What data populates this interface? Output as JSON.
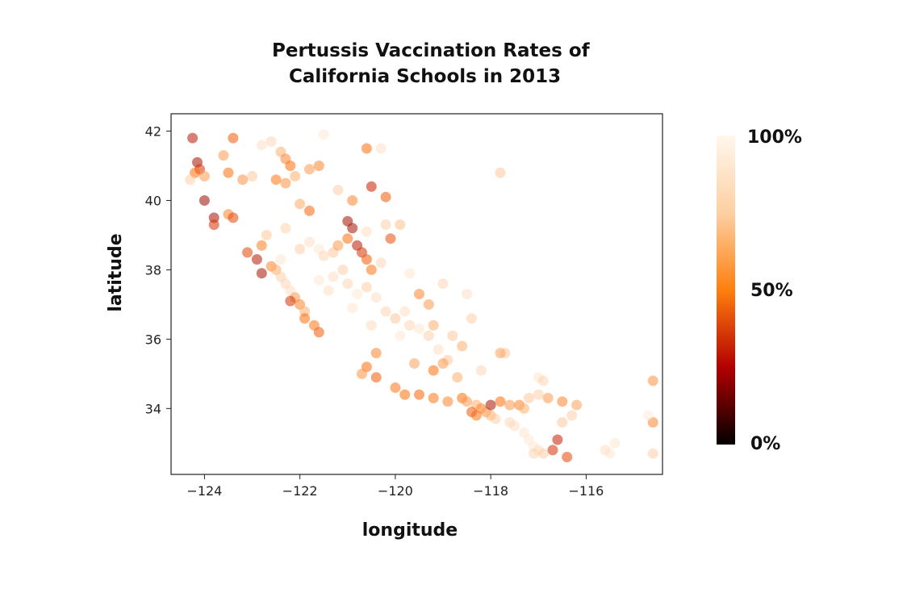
{
  "chart_data": {
    "type": "scatter",
    "title_line1": "Pertussis Vaccination Rates of",
    "title_line2": "California Schools in 2013",
    "xlabel": "longitude",
    "ylabel": "latitude",
    "xlim": [
      -124.7,
      -114.4
    ],
    "ylim": [
      32.1,
      42.5
    ],
    "xticks": [
      -124,
      -122,
      -120,
      -118,
      -116
    ],
    "xtick_labels": [
      "−124",
      "−122",
      "−120",
      "−118",
      "−116"
    ],
    "yticks": [
      34,
      36,
      38,
      40,
      42
    ],
    "ytick_labels": [
      "34",
      "36",
      "38",
      "40",
      "42"
    ],
    "colorbar": {
      "labels": [
        "100%",
        "50%",
        "0%"
      ],
      "values": [
        100,
        50,
        0
      ],
      "colors": [
        "#fff7ec",
        "#ff7f0e",
        "#c41b00",
        "#000000"
      ]
    },
    "points": [
      [
        -124.25,
        41.8,
        45
      ],
      [
        -124.15,
        41.1,
        40
      ],
      [
        -124.1,
        40.9,
        55
      ],
      [
        -124.2,
        40.8,
        70
      ],
      [
        -124.0,
        40.7,
        80
      ],
      [
        -124.3,
        40.6,
        90
      ],
      [
        -124.0,
        40.0,
        35
      ],
      [
        -123.8,
        39.5,
        40
      ],
      [
        -123.8,
        39.3,
        55
      ],
      [
        -123.5,
        39.6,
        75
      ],
      [
        -123.4,
        39.5,
        60
      ],
      [
        -123.6,
        41.3,
        80
      ],
      [
        -123.4,
        41.8,
        65
      ],
      [
        -123.5,
        40.8,
        70
      ],
      [
        -123.2,
        40.6,
        78
      ],
      [
        -123.0,
        40.7,
        88
      ],
      [
        -122.8,
        41.6,
        95
      ],
      [
        -122.6,
        41.7,
        92
      ],
      [
        -122.4,
        41.4,
        85
      ],
      [
        -122.3,
        41.2,
        75
      ],
      [
        -122.2,
        41.0,
        70
      ],
      [
        -122.5,
        40.6,
        72
      ],
      [
        -122.3,
        40.5,
        78
      ],
      [
        -122.1,
        40.7,
        85
      ],
      [
        -121.8,
        40.9,
        80
      ],
      [
        -121.6,
        41.0,
        75
      ],
      [
        -121.5,
        41.9,
        97
      ],
      [
        -121.2,
        40.3,
        90
      ],
      [
        -120.9,
        40.0,
        75
      ],
      [
        -120.6,
        41.5,
        70
      ],
      [
        -120.5,
        40.4,
        50
      ],
      [
        -120.2,
        40.1,
        65
      ],
      [
        -120.3,
        41.5,
        95
      ],
      [
        -117.8,
        40.8,
        88
      ],
      [
        -123.1,
        38.5,
        60
      ],
      [
        -122.9,
        38.3,
        45
      ],
      [
        -122.8,
        37.9,
        40
      ],
      [
        -122.6,
        38.1,
        75
      ],
      [
        -122.5,
        38.0,
        85
      ],
      [
        -122.4,
        37.8,
        90
      ],
      [
        -122.3,
        37.6,
        92
      ],
      [
        -122.2,
        37.4,
        95
      ],
      [
        -122.1,
        37.2,
        80
      ],
      [
        -122.0,
        37.0,
        75
      ],
      [
        -122.2,
        37.1,
        55
      ],
      [
        -121.9,
        36.8,
        85
      ],
      [
        -121.9,
        36.6,
        70
      ],
      [
        -121.7,
        36.4,
        72
      ],
      [
        -121.6,
        36.2,
        65
      ],
      [
        -122.0,
        38.6,
        90
      ],
      [
        -121.8,
        38.8,
        95
      ],
      [
        -121.6,
        38.6,
        97
      ],
      [
        -121.5,
        38.4,
        92
      ],
      [
        -121.3,
        38.5,
        88
      ],
      [
        -121.2,
        38.7,
        80
      ],
      [
        -121.0,
        38.9,
        70
      ],
      [
        -120.9,
        39.2,
        40
      ],
      [
        -121.0,
        39.4,
        38
      ],
      [
        -120.8,
        38.7,
        45
      ],
      [
        -120.7,
        38.5,
        55
      ],
      [
        -120.6,
        38.3,
        65
      ],
      [
        -120.5,
        38.0,
        72
      ],
      [
        -121.1,
        38.0,
        90
      ],
      [
        -121.3,
        37.8,
        95
      ],
      [
        -121.0,
        37.6,
        92
      ],
      [
        -120.8,
        37.3,
        97
      ],
      [
        -120.6,
        37.5,
        90
      ],
      [
        -120.4,
        37.2,
        95
      ],
      [
        -120.2,
        36.8,
        92
      ],
      [
        -120.0,
        36.6,
        88
      ],
      [
        -119.8,
        36.8,
        95
      ],
      [
        -119.7,
        36.4,
        92
      ],
      [
        -119.5,
        36.3,
        96
      ],
      [
        -119.3,
        36.1,
        90
      ],
      [
        -119.2,
        36.4,
        85
      ],
      [
        -119.5,
        37.3,
        75
      ],
      [
        -119.3,
        37.0,
        80
      ],
      [
        -119.0,
        37.6,
        92
      ],
      [
        -118.5,
        37.3,
        95
      ],
      [
        -118.4,
        36.6,
        90
      ],
      [
        -118.6,
        35.8,
        85
      ],
      [
        -118.9,
        35.4,
        88
      ],
      [
        -119.0,
        35.3,
        80
      ],
      [
        -119.2,
        35.1,
        70
      ],
      [
        -119.6,
        35.3,
        82
      ],
      [
        -120.4,
        35.6,
        75
      ],
      [
        -120.6,
        35.2,
        70
      ],
      [
        -120.7,
        35.0,
        78
      ],
      [
        -120.4,
        34.9,
        65
      ],
      [
        -120.0,
        34.6,
        72
      ],
      [
        -119.8,
        34.4,
        70
      ],
      [
        -119.5,
        34.4,
        68
      ],
      [
        -119.2,
        34.3,
        72
      ],
      [
        -118.9,
        34.2,
        75
      ],
      [
        -118.6,
        34.3,
        70
      ],
      [
        -118.5,
        34.2,
        80
      ],
      [
        -118.3,
        34.1,
        85
      ],
      [
        -118.2,
        34.0,
        75
      ],
      [
        -118.1,
        33.9,
        80
      ],
      [
        -118.0,
        33.8,
        85
      ],
      [
        -117.9,
        33.7,
        90
      ],
      [
        -118.3,
        33.8,
        72
      ],
      [
        -118.4,
        33.9,
        65
      ],
      [
        -118.0,
        34.1,
        40
      ],
      [
        -117.8,
        34.2,
        70
      ],
      [
        -117.6,
        34.1,
        80
      ],
      [
        -117.4,
        34.1,
        75
      ],
      [
        -117.3,
        34.0,
        85
      ],
      [
        -117.2,
        34.3,
        88
      ],
      [
        -117.0,
        34.4,
        90
      ],
      [
        -116.8,
        34.3,
        80
      ],
      [
        -116.5,
        34.2,
        75
      ],
      [
        -116.2,
        34.1,
        82
      ],
      [
        -117.6,
        33.6,
        92
      ],
      [
        -117.5,
        33.5,
        95
      ],
      [
        -117.3,
        33.3,
        96
      ],
      [
        -117.2,
        33.1,
        97
      ],
      [
        -117.1,
        32.9,
        97
      ],
      [
        -117.0,
        32.8,
        95
      ],
      [
        -117.1,
        32.7,
        92
      ],
      [
        -116.9,
        32.7,
        90
      ],
      [
        -116.7,
        32.8,
        55
      ],
      [
        -116.6,
        33.1,
        50
      ],
      [
        -116.4,
        32.6,
        60
      ],
      [
        -116.5,
        33.6,
        88
      ],
      [
        -116.3,
        33.8,
        90
      ],
      [
        -115.6,
        32.8,
        95
      ],
      [
        -115.5,
        32.7,
        97
      ],
      [
        -115.4,
        33.0,
        96
      ],
      [
        -114.6,
        34.8,
        78
      ],
      [
        -114.6,
        33.6,
        75
      ],
      [
        -114.6,
        32.7,
        90
      ],
      [
        -114.7,
        33.8,
        98
      ],
      [
        -117.7,
        35.6,
        88
      ],
      [
        -117.8,
        35.6,
        82
      ],
      [
        -118.2,
        35.1,
        92
      ],
      [
        -118.7,
        34.9,
        85
      ],
      [
        -117.0,
        34.9,
        96
      ],
      [
        -116.9,
        34.8,
        92
      ],
      [
        -119.7,
        37.9,
        96
      ],
      [
        -120.3,
        38.2,
        92
      ],
      [
        -120.1,
        38.9,
        62
      ],
      [
        -119.9,
        39.3,
        86
      ],
      [
        -120.2,
        39.3,
        90
      ],
      [
        -120.6,
        39.1,
        94
      ],
      [
        -121.8,
        39.7,
        68
      ],
      [
        -122.0,
        39.9,
        84
      ],
      [
        -122.3,
        39.2,
        91
      ],
      [
        -122.7,
        39.0,
        88
      ],
      [
        -122.8,
        38.7,
        73
      ],
      [
        -122.4,
        38.3,
        96
      ],
      [
        -121.6,
        37.7,
        97
      ],
      [
        -121.4,
        37.4,
        94
      ],
      [
        -120.9,
        36.9,
        96
      ],
      [
        -120.5,
        36.4,
        93
      ],
      [
        -119.9,
        36.1,
        97
      ],
      [
        -119.1,
        35.7,
        95
      ],
      [
        -118.8,
        36.1,
        88
      ]
    ]
  }
}
